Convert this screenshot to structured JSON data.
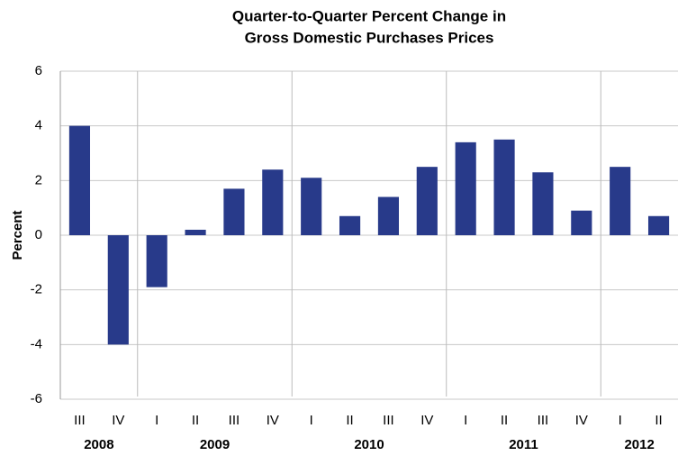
{
  "chart_data": {
    "type": "bar",
    "title": [
      "Quarter-to-Quarter Percent  Change in",
      "Gross Domestic Purchases Prices"
    ],
    "y_label": "Percent",
    "groups": [
      {
        "label": "2008",
        "categories": [
          "III",
          "IV"
        ]
      },
      {
        "label": "2009",
        "categories": [
          "I",
          "II",
          "III",
          "IV"
        ]
      },
      {
        "label": "2010",
        "categories": [
          "I",
          "II",
          "III",
          "IV"
        ]
      },
      {
        "label": "2011",
        "categories": [
          "I",
          "II",
          "III",
          "IV"
        ]
      },
      {
        "label": "2012",
        "categories": [
          "I",
          "II"
        ]
      }
    ],
    "values": [
      4.0,
      -4.0,
      -1.9,
      0.2,
      1.7,
      2.4,
      2.1,
      0.7,
      1.4,
      2.5,
      3.4,
      3.5,
      2.3,
      0.9,
      2.5,
      0.7
    ],
    "color": "#283a8a",
    "ylim": [
      -6,
      6
    ],
    "yticks": [
      -6,
      -4,
      -2,
      0,
      2,
      4,
      6
    ],
    "grid": true
  }
}
